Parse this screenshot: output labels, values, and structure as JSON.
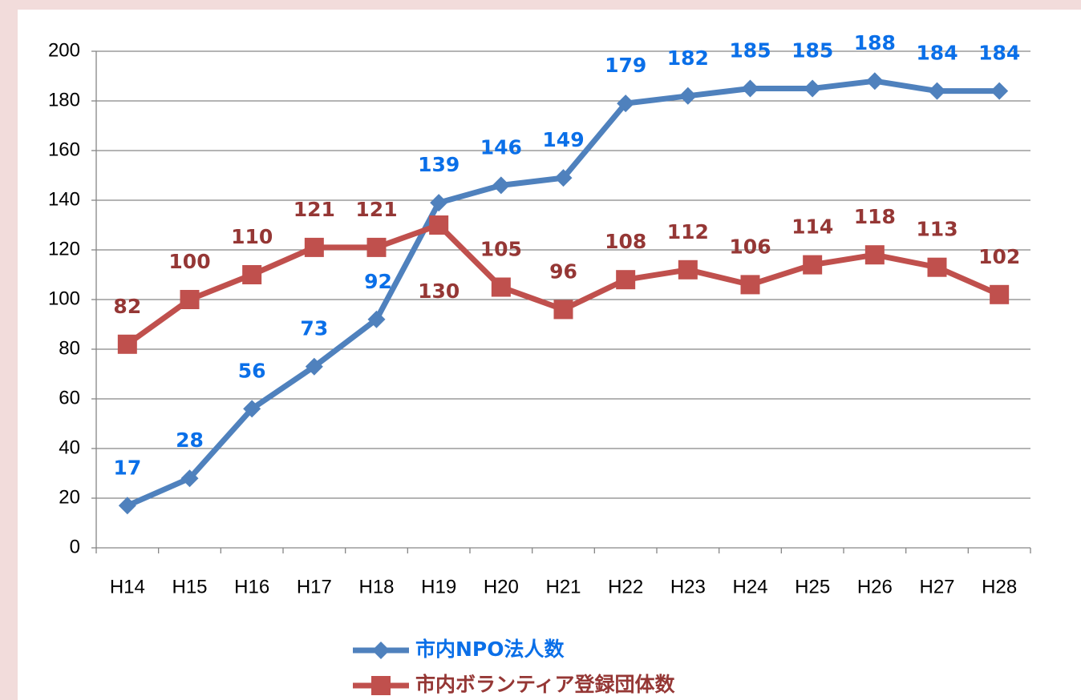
{
  "chart_data": {
    "type": "line",
    "categories": [
      "H14",
      "H15",
      "H16",
      "H17",
      "H18",
      "H19",
      "H20",
      "H21",
      "H22",
      "H23",
      "H24",
      "H25",
      "H26",
      "H27",
      "H28"
    ],
    "series": [
      {
        "name": "市内NPO法人数",
        "color": "#4f81bd",
        "label_color": "#0a6fe8",
        "marker": "diamond",
        "values": [
          17,
          28,
          56,
          73,
          92,
          139,
          146,
          149,
          179,
          182,
          185,
          185,
          188,
          184,
          184
        ]
      },
      {
        "name": "市内ボランティア登録団体数",
        "color": "#c0504d",
        "label_color": "#953735",
        "marker": "square",
        "values": [
          82,
          100,
          110,
          121,
          121,
          130,
          105,
          96,
          108,
          112,
          106,
          114,
          118,
          113,
          102
        ]
      }
    ],
    "ylim": [
      0,
      200
    ],
    "yticks": [
      0,
      20,
      40,
      60,
      80,
      100,
      120,
      140,
      160,
      180,
      200
    ],
    "grid": true,
    "legend": "bottom"
  }
}
